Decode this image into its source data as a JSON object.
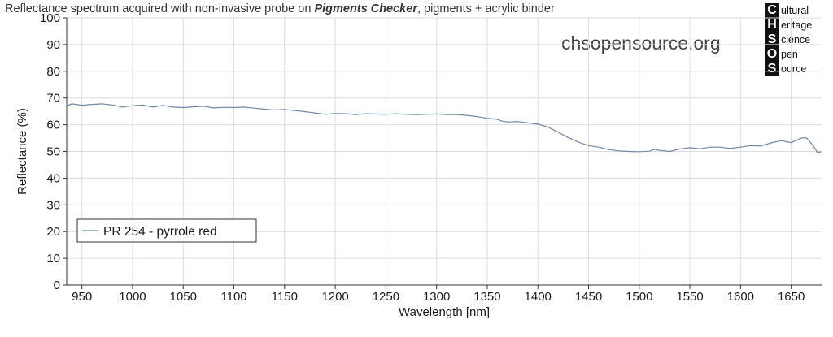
{
  "chart_data": {
    "type": "line",
    "title_parts": {
      "prefix": "Reflectance spectrum acquired with non-invasive probe on ",
      "bold": "Pigments Checker",
      "suffix": ", pigments + acrylic binder"
    },
    "xlabel": "Wavelength [nm]",
    "ylabel": "Reflectance (%)",
    "xlim": [
      935,
      1680
    ],
    "ylim": [
      0,
      100
    ],
    "x_ticks": [
      950,
      1000,
      1050,
      1100,
      1150,
      1200,
      1250,
      1300,
      1350,
      1400,
      1450,
      1500,
      1550,
      1600,
      1650
    ],
    "y_ticks": [
      0,
      10,
      20,
      30,
      40,
      50,
      60,
      70,
      80,
      90,
      100
    ],
    "grid": true,
    "legend_placement": "bottom-left",
    "series_color": "#6f87a8",
    "series": [
      {
        "name": "PR 254 - pyrrole red",
        "x": [
          935,
          940,
          950,
          960,
          970,
          980,
          990,
          1000,
          1010,
          1020,
          1030,
          1040,
          1050,
          1060,
          1070,
          1080,
          1090,
          1100,
          1110,
          1120,
          1130,
          1140,
          1150,
          1160,
          1170,
          1180,
          1190,
          1200,
          1210,
          1220,
          1230,
          1240,
          1250,
          1260,
          1270,
          1280,
          1290,
          1300,
          1310,
          1320,
          1330,
          1340,
          1350,
          1360,
          1365,
          1370,
          1380,
          1390,
          1400,
          1410,
          1420,
          1430,
          1440,
          1450,
          1460,
          1470,
          1480,
          1490,
          1500,
          1510,
          1515,
          1520,
          1530,
          1540,
          1550,
          1560,
          1570,
          1580,
          1590,
          1600,
          1610,
          1620,
          1630,
          1640,
          1650,
          1660,
          1665,
          1672,
          1676,
          1680
        ],
        "y": [
          67,
          67.8,
          67.3,
          67.6,
          67.8,
          67.4,
          66.6,
          67.1,
          67.4,
          66.6,
          67.2,
          66.6,
          66.4,
          66.7,
          66.9,
          66.3,
          66.5,
          66.4,
          66.6,
          66.2,
          65.8,
          65.5,
          65.7,
          65.3,
          64.9,
          64.4,
          63.9,
          64.2,
          64.1,
          63.8,
          64.1,
          64.0,
          63.9,
          64.1,
          63.9,
          63.8,
          63.9,
          64.0,
          63.8,
          63.8,
          63.5,
          63.0,
          62.4,
          62.0,
          61.3,
          61.0,
          61.2,
          60.7,
          60.2,
          59.1,
          57.2,
          55.2,
          53.5,
          52.2,
          51.6,
          50.7,
          50.2,
          50.0,
          49.9,
          50.1,
          50.8,
          50.4,
          50.0,
          50.9,
          51.4,
          51.0,
          51.6,
          51.6,
          51.1,
          51.6,
          52.2,
          52.0,
          53.2,
          54.0,
          53.3,
          55.0,
          55.1,
          52.0,
          49.5,
          49.9
        ]
      }
    ]
  },
  "watermark": "chsopensource.org",
  "logo": {
    "letters": [
      "C",
      "H",
      "S",
      "O",
      "S"
    ],
    "words": [
      "ultural",
      "eritage",
      "cience",
      "pen",
      "ource"
    ]
  }
}
